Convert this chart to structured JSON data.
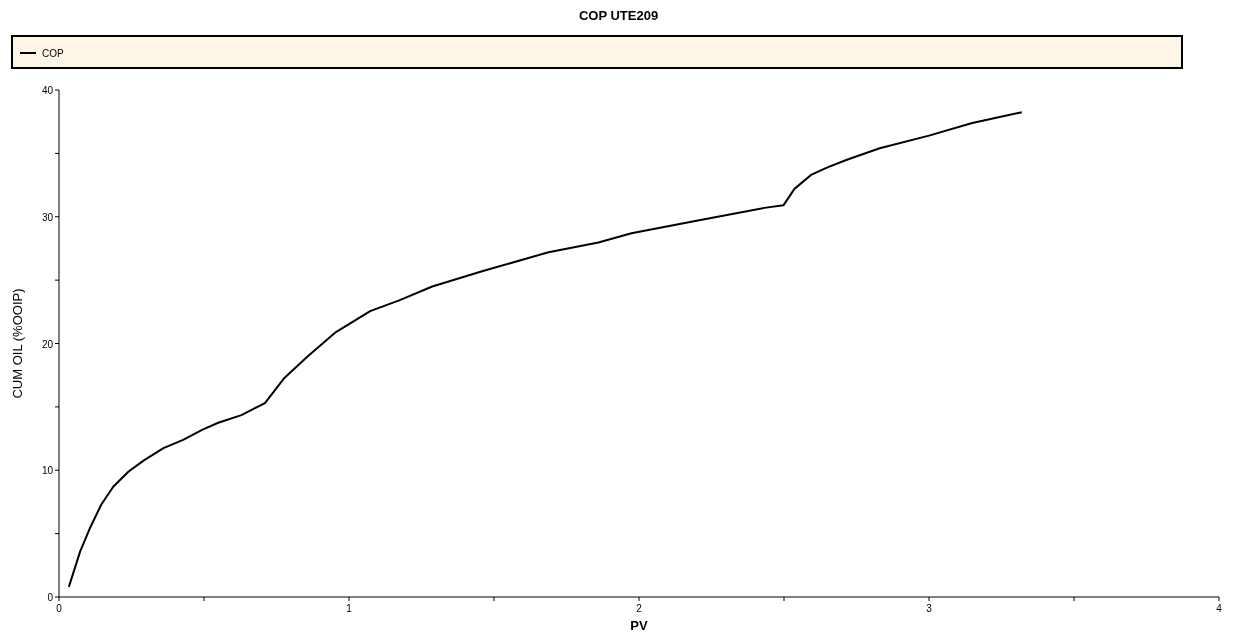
{
  "chart_data": {
    "type": "line",
    "title": "COP UTE209",
    "xlabel": "PV",
    "ylabel": "CUM OIL (%OOIP)",
    "legend": "top",
    "line_style": "solid",
    "marker": "none",
    "grid": false,
    "xlim": [
      0,
      4
    ],
    "xticks": [
      0,
      {
        "value": 0.5,
        "label": null
      },
      1,
      {
        "value": 1.5,
        "label": null
      },
      2,
      {
        "value": 2.5,
        "label": null
      },
      3,
      {
        "value": 3.5,
        "label": null
      },
      4
    ],
    "ylim": [
      0,
      40
    ],
    "yticks": [
      0,
      {
        "value": 5,
        "label": null
      },
      10,
      {
        "value": 15,
        "label": null
      },
      20,
      {
        "value": 25,
        "label": null
      },
      30,
      {
        "value": 35,
        "label": null
      },
      40
    ],
    "series": [
      {
        "name": "COP",
        "color": "#000000",
        "x": [
          0.034,
          0.073,
          0.106,
          0.146,
          0.187,
          0.24,
          0.294,
          0.36,
          0.428,
          0.495,
          0.549,
          0.629,
          0.71,
          0.778,
          0.858,
          0.952,
          1.073,
          1.173,
          1.287,
          1.459,
          1.688,
          1.86,
          1.974,
          2.203,
          2.432,
          2.498,
          2.536,
          2.593,
          2.65,
          2.717,
          2.83,
          3.0,
          3.149,
          3.32
        ],
        "values": [
          0.8,
          3.6,
          5.4,
          7.3,
          8.7,
          9.9,
          10.8,
          11.75,
          12.4,
          13.2,
          13.75,
          14.35,
          15.3,
          17.3,
          19.0,
          20.85,
          22.55,
          23.4,
          24.5,
          25.7,
          27.2,
          27.97,
          28.7,
          29.7,
          30.7,
          30.9,
          32.2,
          33.3,
          33.9,
          34.5,
          35.4,
          36.4,
          37.4,
          38.25
        ]
      }
    ]
  }
}
